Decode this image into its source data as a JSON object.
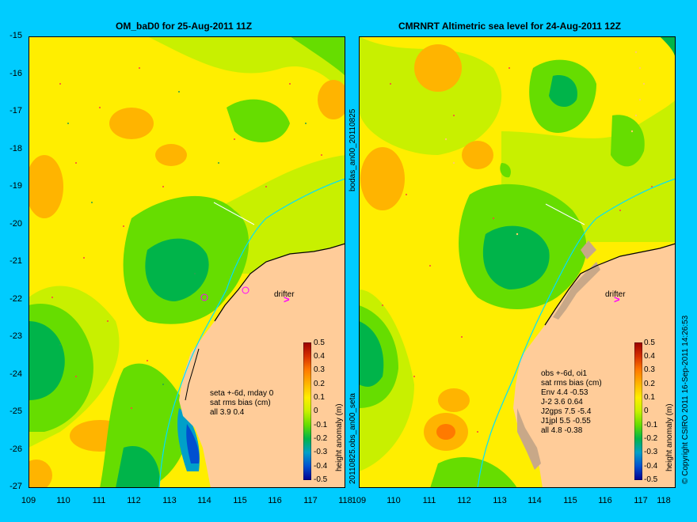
{
  "left_panel": {
    "title": "OM_baD0 for 25-Aug-2011 11Z",
    "side_label_top": "bodas_an00_20110825",
    "side_label_bottom": "20110825.obs_an00_seta",
    "drifter_label": "drifter",
    "stats_lines": [
      "seta +-6d, mday 0",
      "sat rms bias (cm)",
      "all 3.9 0.4"
    ]
  },
  "right_panel": {
    "title": "CMRNRT Altimetric sea level  for 24-Aug-2011 12Z",
    "drifter_label": "drifter",
    "stats_lines": [
      "obs +-6d, oi1",
      "sat rms bias (cm)",
      "Env   4.4 -0.53",
      "J-2   3.6 0.64",
      "J2gps 7.5 -5.4",
      "J1jpl 5.5 -0.55",
      "all 4.8 -0.38"
    ]
  },
  "colorbar": {
    "title": "height anomaly (m)",
    "ticks": [
      "0.5",
      "0.4",
      "0.3",
      "0.2",
      "0.1",
      "0",
      "-0.1",
      "-0.2",
      "-0.3",
      "-0.4",
      "-0.5"
    ],
    "colors": [
      "#9b0000",
      "#d63000",
      "#ff7a00",
      "#ffb400",
      "#ffee00",
      "#c8f000",
      "#66dd00",
      "#00b44a",
      "#00a0c8",
      "#0050d0",
      "#000090"
    ]
  },
  "y_ticks": [
    "-15",
    "-16",
    "-17",
    "-18",
    "-19",
    "-20",
    "-21",
    "-22",
    "-23",
    "-24",
    "-25",
    "-26",
    "-27"
  ],
  "x_ticks": [
    "109",
    "110",
    "111",
    "112",
    "113",
    "114",
    "115",
    "116",
    "117",
    "118"
  ],
  "copyright": "© Copyright CSIRO 2011   16-Sep-2011 14:26:53",
  "colors": {
    "background": "#00ccff",
    "land": "#ffcc99",
    "drifter": "#ff00ff"
  }
}
